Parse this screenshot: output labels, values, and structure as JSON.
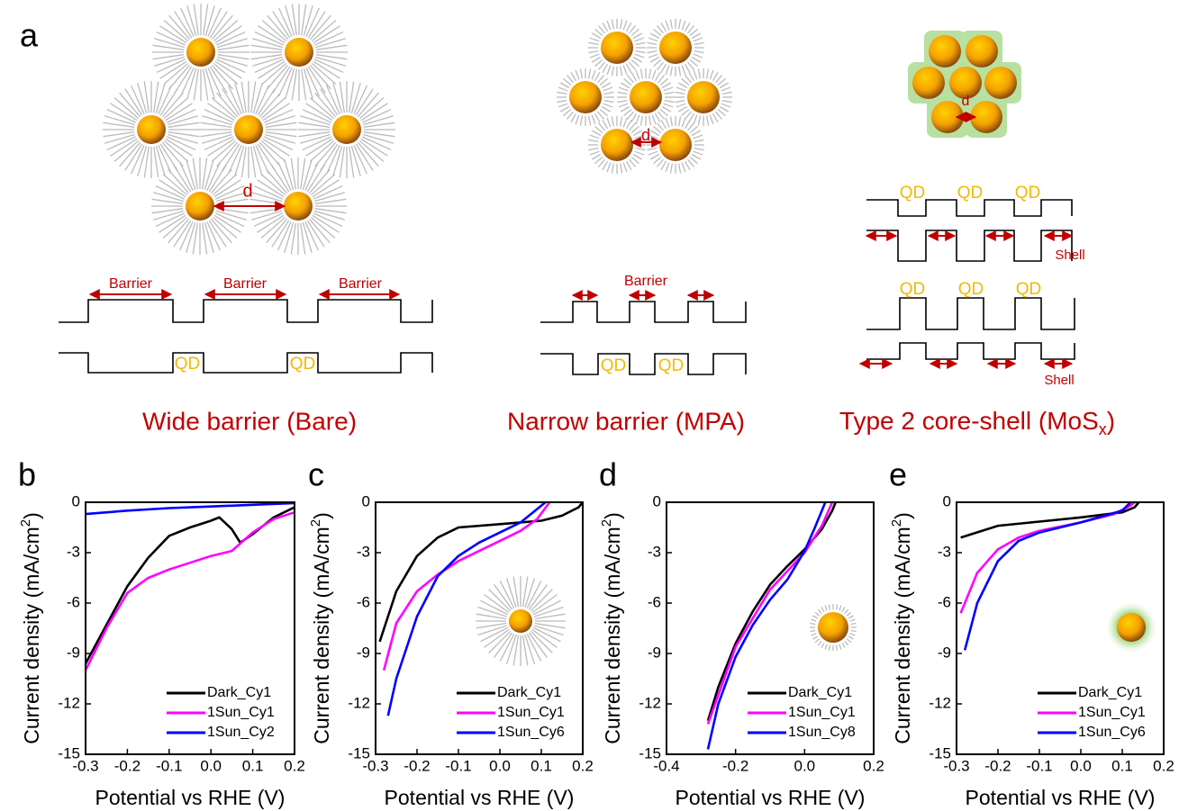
{
  "panel_a": {
    "label": "a",
    "distance_labels": [
      "d",
      "d",
      "d"
    ],
    "barrier_labels": [
      "Barrier",
      "Barrier",
      "Barrier",
      "Barrier"
    ],
    "qd_labels": [
      "QD",
      "QD",
      "QD",
      "QD",
      "QD",
      "QD",
      "QD",
      "QD",
      "QD",
      "QD"
    ],
    "shell_labels": [
      "Shell",
      "Shell"
    ],
    "captions": [
      {
        "text": "Wide barrier (Bare)"
      },
      {
        "text": "Narrow barrier (MPA)"
      },
      {
        "text": "Type 2 core-shell (MoS",
        "subscript": "x",
        "suffix": ")"
      }
    ]
  },
  "chart_data": [
    {
      "type": "line",
      "panel": "b",
      "xlabel": "Potential vs RHE (V)",
      "ylabel": [
        "Current density (mA/cm",
        "2",
        ")"
      ],
      "xlim": [
        -0.3,
        0.2
      ],
      "xticks": [
        -0.3,
        -0.2,
        -0.1,
        {
          "value": 0,
          "label": "0.0"
        },
        0.1,
        0.2
      ],
      "ylim": [
        -15,
        0
      ],
      "yticks": [
        -15,
        -12,
        -9,
        -6,
        -3,
        0
      ],
      "legend": "lower-right",
      "series": [
        {
          "name": "Dark_Cy1",
          "color": "#000000",
          "x": [
            -0.3,
            -0.25,
            -0.2,
            -0.15,
            -0.1,
            -0.05,
            0,
            0.02,
            0.05,
            0.07,
            0.1,
            0.15,
            0.2
          ],
          "values": [
            -9.6,
            -7.3,
            -5.0,
            -3.3,
            -2.0,
            -1.5,
            -1.1,
            -0.9,
            -1.6,
            -2.4,
            -1.9,
            -0.9,
            -0.3
          ]
        },
        {
          "name": "1Sun_Cy1",
          "color": "#ff00ff",
          "x": [
            -0.3,
            -0.25,
            -0.2,
            -0.15,
            -0.1,
            -0.05,
            0,
            0.05,
            0.1,
            0.15,
            0.2
          ],
          "values": [
            -10,
            -7.5,
            -5.4,
            -4.5,
            -4.0,
            -3.6,
            -3.2,
            -2.9,
            -1.8,
            -1.0,
            -0.6
          ]
        },
        {
          "name": "1Sun_Cy2",
          "color": "#0000ff",
          "x": [
            -0.3,
            -0.2,
            -0.1,
            0,
            0.1,
            0.2
          ],
          "values": [
            -0.7,
            -0.5,
            -0.35,
            -0.25,
            -0.15,
            -0.05
          ]
        }
      ]
    },
    {
      "type": "line",
      "panel": "c",
      "xlabel": "Potential vs RHE (V)",
      "ylabel": [
        "Current density (mA/cm",
        "2",
        ")"
      ],
      "xlim": [
        -0.3,
        0.2
      ],
      "xticks": [
        -0.3,
        -0.2,
        -0.1,
        {
          "value": 0,
          "label": "0.0"
        },
        0.1,
        0.2
      ],
      "ylim": [
        -15,
        0
      ],
      "yticks": [
        -15,
        -12,
        -9,
        -6,
        -3,
        0
      ],
      "legend": "lower-right",
      "series": [
        {
          "name": "Dark_Cy1",
          "color": "#000000",
          "x": [
            -0.29,
            -0.25,
            -0.2,
            -0.15,
            -0.1,
            0,
            0.1,
            0.15,
            0.19,
            0.2
          ],
          "values": [
            -8.3,
            -5.3,
            -3.2,
            -2.1,
            -1.5,
            -1.3,
            -1.1,
            -0.8,
            -0.3,
            0
          ]
        },
        {
          "name": "1Sun_Cy1",
          "color": "#ff00ff",
          "x": [
            -0.28,
            -0.25,
            -0.2,
            -0.15,
            -0.1,
            -0.05,
            0,
            0.05,
            0.09,
            0.12
          ],
          "values": [
            -10,
            -7.2,
            -5.3,
            -4.3,
            -3.5,
            -2.9,
            -2.3,
            -1.7,
            -1.0,
            0
          ]
        },
        {
          "name": "1Sun_Cy6",
          "color": "#0000ff",
          "x": [
            -0.27,
            -0.25,
            -0.2,
            -0.15,
            -0.1,
            -0.05,
            0,
            0.05,
            0.08,
            0.11
          ],
          "values": [
            -12.7,
            -10.5,
            -6.8,
            -4.4,
            -3.2,
            -2.4,
            -1.8,
            -1.2,
            -0.6,
            0
          ]
        }
      ]
    },
    {
      "type": "line",
      "panel": "d",
      "xlabel": "Potential vs RHE (V)",
      "ylabel": [
        "Current density (mA/cm",
        "2",
        ")"
      ],
      "xlim": [
        -0.4,
        0.2
      ],
      "xticks": [
        -0.4,
        -0.2,
        {
          "value": 0,
          "label": "0.0"
        },
        0.2
      ],
      "ylim": [
        -15,
        0
      ],
      "yticks": [
        -15,
        -12,
        -9,
        -6,
        -3,
        0
      ],
      "legend": "lower-right",
      "series": [
        {
          "name": "Dark_Cy1",
          "color": "#000000",
          "x": [
            -0.28,
            -0.25,
            -0.2,
            -0.15,
            -0.1,
            -0.05,
            0,
            0.05,
            0.08,
            0.09
          ],
          "values": [
            -13,
            -11,
            -8.4,
            -6.5,
            -4.9,
            -3.8,
            -2.8,
            -1.6,
            -0.5,
            0
          ]
        },
        {
          "name": "1Sun_Cy1",
          "color": "#ff00ff",
          "x": [
            -0.28,
            -0.2,
            -0.1,
            0,
            0.05,
            0.08
          ],
          "values": [
            -13.2,
            -8.6,
            -5.2,
            -3.0,
            -1.4,
            0
          ]
        },
        {
          "name": "1Sun_Cy8",
          "color": "#0000ff",
          "x": [
            -0.28,
            -0.25,
            -0.2,
            -0.15,
            -0.1,
            -0.05,
            0,
            0.03,
            0.06
          ],
          "values": [
            -14.7,
            -12,
            -9.2,
            -7.3,
            -5.8,
            -4.6,
            -2.9,
            -1.5,
            0
          ]
        }
      ]
    },
    {
      "type": "line",
      "panel": "e",
      "xlabel": "Potential vs RHE (V)",
      "ylabel": [
        "Current density (mA/cm",
        "2",
        ")"
      ],
      "xlim": [
        -0.3,
        0.2
      ],
      "xticks": [
        -0.3,
        -0.2,
        -0.1,
        {
          "value": 0,
          "label": "0.0"
        },
        0.1,
        0.2
      ],
      "ylim": [
        -15,
        0
      ],
      "yticks": [
        -15,
        -12,
        -9,
        -6,
        -3,
        0
      ],
      "legend": "lower-right",
      "series": [
        {
          "name": "Dark_Cy1",
          "color": "#000000",
          "x": [
            -0.29,
            -0.2,
            -0.1,
            0,
            0.1,
            0.13,
            0.14
          ],
          "values": [
            -2.1,
            -1.4,
            -1.15,
            -0.9,
            -0.6,
            -0.3,
            0
          ]
        },
        {
          "name": "1Sun_Cy1",
          "color": "#ff00ff",
          "x": [
            -0.29,
            -0.25,
            -0.2,
            -0.15,
            -0.1,
            0,
            0.08,
            0.12,
            0.13
          ],
          "values": [
            -6.6,
            -4.2,
            -2.8,
            -2.1,
            -1.7,
            -1.2,
            -0.7,
            -0.2,
            0
          ]
        },
        {
          "name": "1Sun_Cy6",
          "color": "#0000ff",
          "x": [
            -0.28,
            -0.25,
            -0.2,
            -0.15,
            -0.1,
            0,
            0.1,
            0.12
          ],
          "values": [
            -8.8,
            -6.0,
            -3.5,
            -2.3,
            -1.8,
            -1.2,
            -0.5,
            0
          ]
        }
      ]
    }
  ]
}
